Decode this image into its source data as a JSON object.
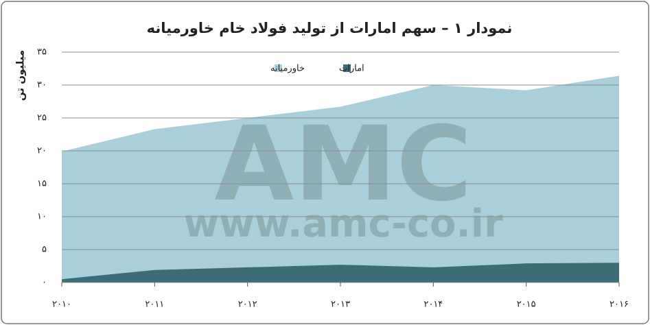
{
  "chart_data": {
    "type": "area",
    "title": "نمودار ۱ – سهم امارات از تولید فولاد خام خاورمیانه",
    "ylabel": "میلیون تن",
    "watermark": [
      "AMC",
      "www.amc-co.ir"
    ],
    "categories": [
      "۲۰۱۰",
      "۲۰۱۱",
      "۲۰۱۲",
      "۲۰۱۳",
      "۲۰۱۴",
      "۲۰۱۵",
      "۲۰۱۶"
    ],
    "series": [
      {
        "name": "خاورمیانه",
        "color": "#a9d0da",
        "values": [
          19.9,
          23.3,
          25,
          26.7,
          30,
          29.2,
          31.4
        ]
      },
      {
        "name": "امارات",
        "color": "#3e6c76",
        "values": [
          0.5,
          1.9,
          2.3,
          2.7,
          2.3,
          2.9,
          3.0
        ]
      }
    ],
    "ylim": [
      0,
      35
    ],
    "yticks": [
      {
        "value": 0,
        "label": "۰"
      },
      {
        "value": 5,
        "label": "۵"
      },
      {
        "value": 10,
        "label": "۱۰"
      },
      {
        "value": 15,
        "label": "۱۵"
      },
      {
        "value": 20,
        "label": "۲۰"
      },
      {
        "value": 25,
        "label": "۲۵"
      },
      {
        "value": 30,
        "label": "۳۰"
      },
      {
        "value": 35,
        "label": "۳۵"
      }
    ],
    "grid": true
  }
}
